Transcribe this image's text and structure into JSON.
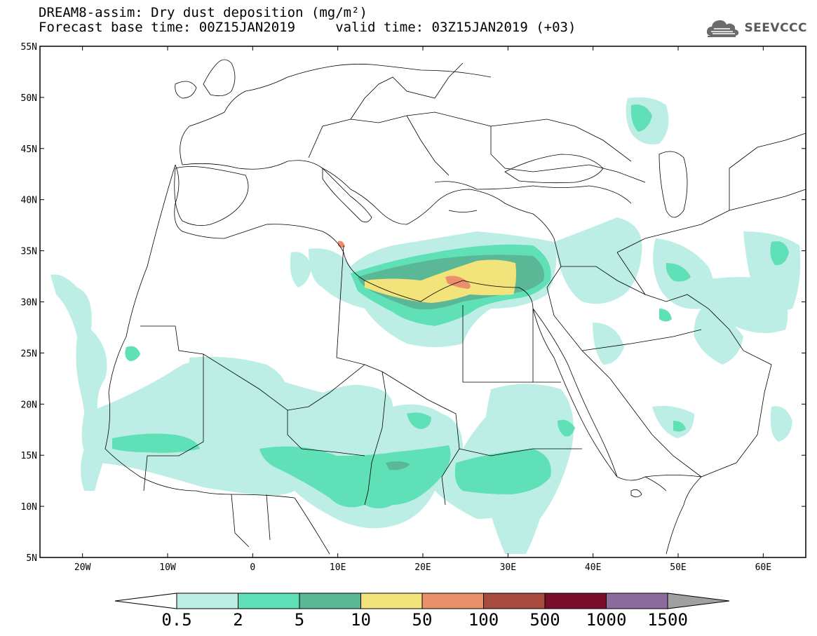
{
  "header": {
    "title_line1": "DREAM8-assim: Dry dust deposition (mg/m²)",
    "title_line2": "Forecast base time: 00Z15JAN2019     valid time: 03Z15JAN2019 (+03)",
    "logo_text": "SEEVCCC",
    "logo_icon": "cloud-logo-icon"
  },
  "map": {
    "lon_range": [
      -25,
      65
    ],
    "lat_range": [
      5,
      55
    ],
    "lat_ticks": [
      {
        "value": 55,
        "label": "55N"
      },
      {
        "value": 50,
        "label": "50N"
      },
      {
        "value": 45,
        "label": "45N"
      },
      {
        "value": 40,
        "label": "40N"
      },
      {
        "value": 35,
        "label": "35N"
      },
      {
        "value": 30,
        "label": "30N"
      },
      {
        "value": 25,
        "label": "25N"
      },
      {
        "value": 20,
        "label": "20N"
      },
      {
        "value": 15,
        "label": "15N"
      },
      {
        "value": 10,
        "label": "10N"
      },
      {
        "value": 5,
        "label": "5N"
      }
    ],
    "lon_ticks": [
      {
        "value": -20,
        "label": "20W"
      },
      {
        "value": -10,
        "label": "10W"
      },
      {
        "value": 0,
        "label": "0"
      },
      {
        "value": 10,
        "label": "10E"
      },
      {
        "value": 20,
        "label": "20E"
      },
      {
        "value": 30,
        "label": "30E"
      },
      {
        "value": 40,
        "label": "40E"
      },
      {
        "value": 50,
        "label": "50E"
      },
      {
        "value": 60,
        "label": "60E"
      }
    ]
  },
  "colorbar": {
    "left_arrow_color": "#ffffff",
    "right_arrow_color": "#a0a0a0",
    "bins": [
      {
        "color": "#bdeee6",
        "label": "0.5"
      },
      {
        "color": "#5fe0b6",
        "label": "2"
      },
      {
        "color": "#5ab896",
        "label": "5"
      },
      {
        "color": "#f2e37a",
        "label": "10"
      },
      {
        "color": "#ea906a",
        "label": "50"
      },
      {
        "color": "#a84b3f",
        "label": "100"
      },
      {
        "color": "#7a0f2d",
        "label": "500"
      },
      {
        "color": "#8b6b9e",
        "label": "1000"
      }
    ],
    "last_label": "1500"
  }
}
